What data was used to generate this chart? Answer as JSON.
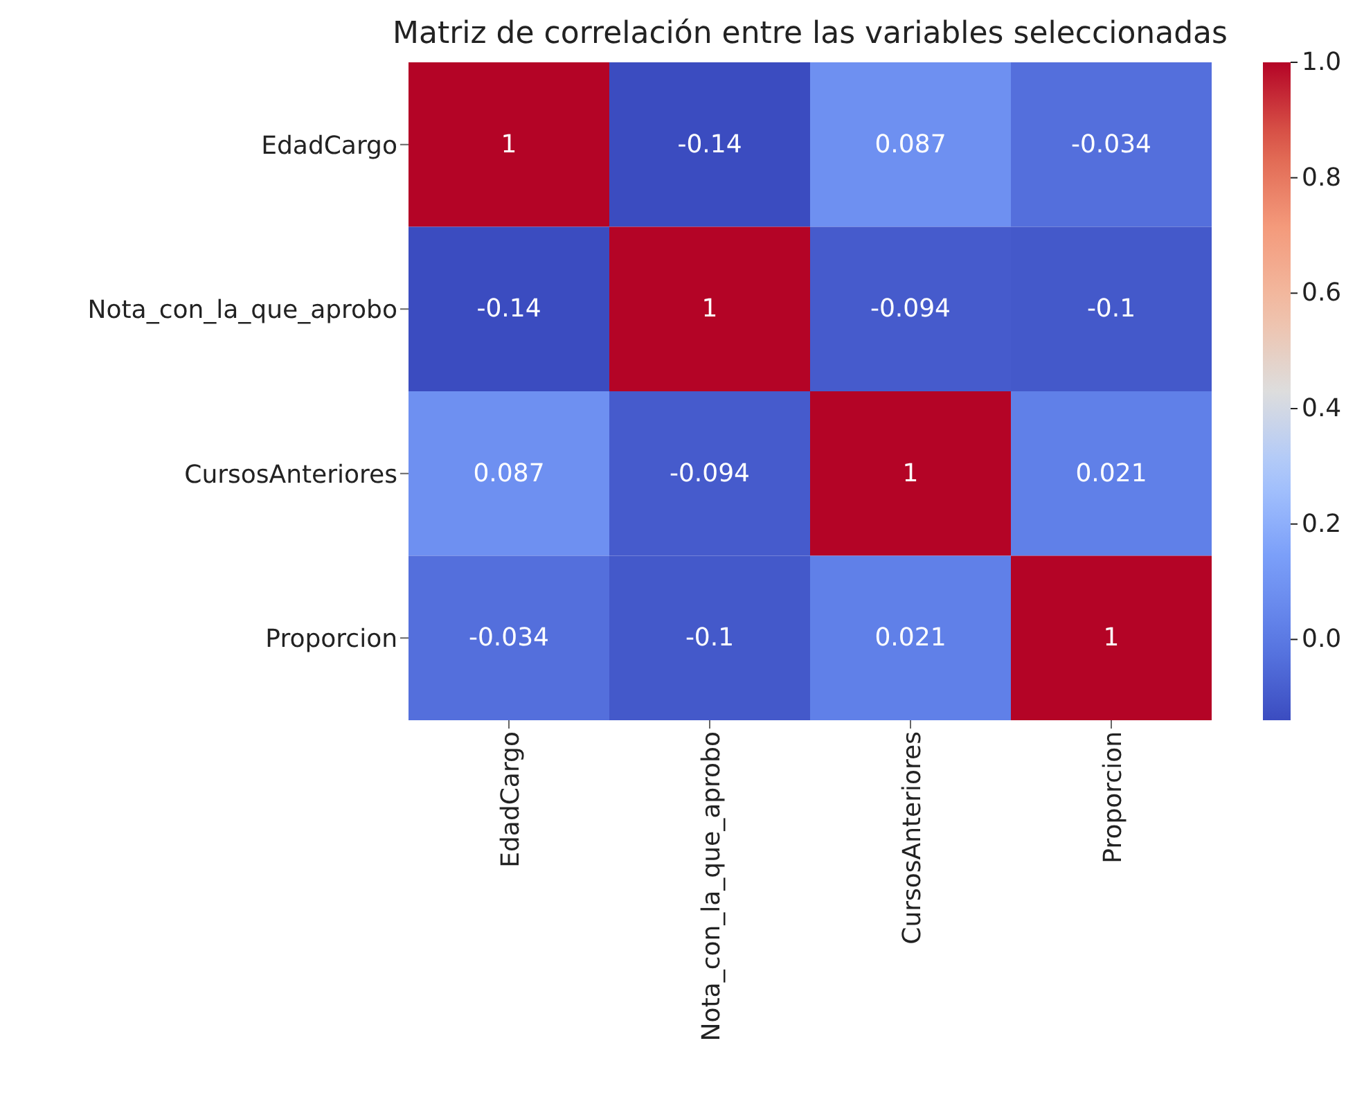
{
  "chart_data": {
    "type": "heatmap",
    "title": "Matriz de correlación entre las variables seleccionadas",
    "categories": [
      "EdadCargo",
      "Nota_con_la_que_aprobo",
      "CursosAnteriores",
      "Proporcion"
    ],
    "y_categories": [
      "EdadCargo",
      "Nota_con_la_que_aprobo",
      "CursosAnteriores",
      "Proporcion"
    ],
    "cells": [
      [
        1,
        -0.14,
        0.087,
        -0.034
      ],
      [
        -0.14,
        1,
        -0.094,
        -0.1
      ],
      [
        0.087,
        -0.094,
        1,
        0.021
      ],
      [
        -0.034,
        -0.1,
        0.021,
        1
      ]
    ],
    "data_labels": true,
    "clim": [
      -0.14,
      1.0
    ],
    "cticks": [
      {
        "value": 0,
        "label": "0.0"
      },
      {
        "value": 0.2,
        "label": "0.2"
      },
      {
        "value": 0.4,
        "label": "0.4"
      },
      {
        "value": 0.6,
        "label": "0.6"
      },
      {
        "value": 0.8,
        "label": "0.8"
      },
      {
        "value": 1,
        "label": "1.0"
      }
    ]
  }
}
